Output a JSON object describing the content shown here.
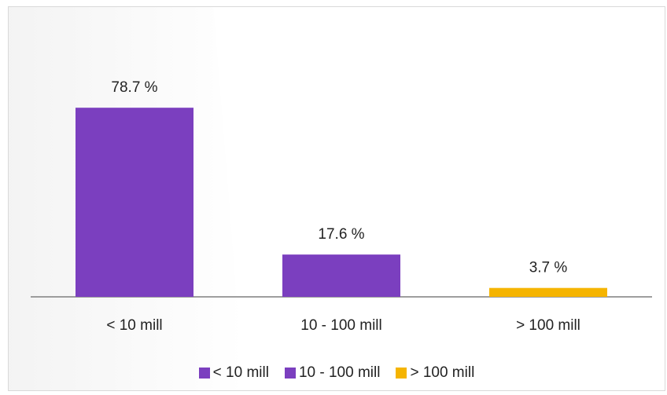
{
  "chart_data": {
    "type": "bar",
    "title": "",
    "categories": [
      "< 10 mill",
      "10 - 100 mill",
      "> 100 mill"
    ],
    "values": [
      78.7,
      17.6,
      3.7
    ],
    "value_labels": [
      "78.7 %",
      "17.6 %",
      "3.7 %"
    ],
    "colors": [
      "#7b3fbf",
      "#7b3fbf",
      "#f5b400"
    ],
    "legend": {
      "placement": "bottom",
      "entries": [
        "< 10 mill",
        "10 - 100 mill",
        "> 100 mill"
      ]
    },
    "xlabel": "",
    "ylabel": "",
    "grid": false,
    "ylim": [
      0,
      100
    ]
  }
}
